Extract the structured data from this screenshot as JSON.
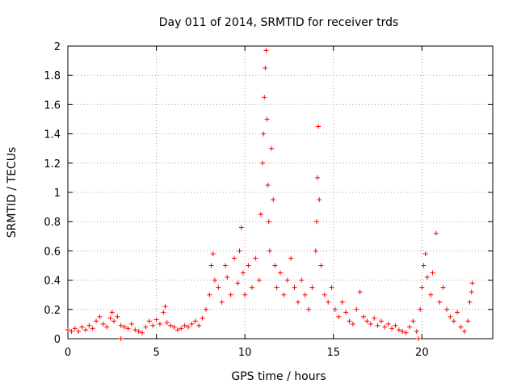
{
  "chart_data": {
    "type": "scatter",
    "title": "Day 011 of 2014, SRMTID for receiver trds",
    "xlabel": "GPS time / hours",
    "ylabel": "SRMTID / TECUs",
    "xlim": [
      0,
      24
    ],
    "ylim": [
      0,
      2
    ],
    "xticks": [
      0,
      5,
      10,
      15,
      20
    ],
    "xtick_labels": [
      "0",
      "5",
      "10",
      "15",
      "20"
    ],
    "yticks": [
      0,
      0.2,
      0.4,
      0.6,
      0.8,
      1,
      1.2,
      1.4,
      1.6,
      1.8,
      2
    ],
    "ytick_labels": [
      "0",
      "0.2",
      "0.4",
      "0.6",
      "0.8",
      "1",
      "1.2",
      "1.4",
      "1.6",
      "1.8",
      "2"
    ],
    "grid": true,
    "marker": "+",
    "color": "#ff0000",
    "series": [
      {
        "name": "SRMTID",
        "points": [
          [
            0.0,
            0.06
          ],
          [
            0.2,
            0.05
          ],
          [
            0.4,
            0.07
          ],
          [
            0.6,
            0.05
          ],
          [
            0.8,
            0.08
          ],
          [
            1.0,
            0.06
          ],
          [
            1.2,
            0.09
          ],
          [
            1.4,
            0.07
          ],
          [
            1.6,
            0.12
          ],
          [
            1.8,
            0.15
          ],
          [
            2.0,
            0.1
          ],
          [
            2.2,
            0.08
          ],
          [
            2.4,
            0.14
          ],
          [
            2.5,
            0.18
          ],
          [
            2.6,
            0.12
          ],
          [
            2.8,
            0.15
          ],
          [
            3.0,
            0.0
          ],
          [
            3.0,
            0.09
          ],
          [
            3.2,
            0.08
          ],
          [
            3.4,
            0.07
          ],
          [
            3.6,
            0.1
          ],
          [
            3.8,
            0.06
          ],
          [
            4.0,
            0.05
          ],
          [
            4.2,
            0.04
          ],
          [
            4.4,
            0.08
          ],
          [
            4.6,
            0.12
          ],
          [
            4.8,
            0.09
          ],
          [
            5.0,
            0.13
          ],
          [
            5.2,
            0.1
          ],
          [
            5.4,
            0.18
          ],
          [
            5.5,
            0.22
          ],
          [
            5.6,
            0.11
          ],
          [
            5.8,
            0.09
          ],
          [
            6.0,
            0.08
          ],
          [
            6.2,
            0.06
          ],
          [
            6.4,
            0.07
          ],
          [
            6.6,
            0.09
          ],
          [
            6.8,
            0.08
          ],
          [
            7.0,
            0.1
          ],
          [
            7.2,
            0.12
          ],
          [
            7.4,
            0.09
          ],
          [
            7.6,
            0.14
          ],
          [
            7.8,
            0.2
          ],
          [
            8.0,
            0.3
          ],
          [
            8.1,
            0.5
          ],
          [
            8.2,
            0.58
          ],
          [
            8.3,
            0.4
          ],
          [
            8.5,
            0.35
          ],
          [
            8.7,
            0.25
          ],
          [
            8.9,
            0.5
          ],
          [
            9.0,
            0.42
          ],
          [
            9.2,
            0.3
          ],
          [
            9.4,
            0.55
          ],
          [
            9.6,
            0.38
          ],
          [
            9.7,
            0.6
          ],
          [
            9.8,
            0.76
          ],
          [
            9.9,
            0.45
          ],
          [
            10.0,
            0.3
          ],
          [
            10.2,
            0.5
          ],
          [
            10.4,
            0.35
          ],
          [
            10.6,
            0.55
          ],
          [
            10.8,
            0.4
          ],
          [
            10.9,
            0.85
          ],
          [
            11.0,
            1.2
          ],
          [
            11.05,
            1.4
          ],
          [
            11.1,
            1.65
          ],
          [
            11.15,
            1.85
          ],
          [
            11.2,
            1.97
          ],
          [
            11.25,
            1.5
          ],
          [
            11.3,
            1.05
          ],
          [
            11.35,
            0.8
          ],
          [
            11.4,
            0.6
          ],
          [
            11.5,
            1.3
          ],
          [
            11.6,
            0.95
          ],
          [
            11.7,
            0.5
          ],
          [
            11.8,
            0.35
          ],
          [
            12.0,
            0.45
          ],
          [
            12.2,
            0.3
          ],
          [
            12.4,
            0.4
          ],
          [
            12.6,
            0.55
          ],
          [
            12.8,
            0.35
          ],
          [
            13.0,
            0.25
          ],
          [
            13.2,
            0.4
          ],
          [
            13.4,
            0.3
          ],
          [
            13.6,
            0.2
          ],
          [
            13.8,
            0.35
          ],
          [
            14.0,
            0.6
          ],
          [
            14.05,
            0.8
          ],
          [
            14.1,
            1.1
          ],
          [
            14.15,
            1.45
          ],
          [
            14.2,
            0.95
          ],
          [
            14.3,
            0.5
          ],
          [
            14.5,
            0.3
          ],
          [
            14.7,
            0.25
          ],
          [
            14.9,
            0.35
          ],
          [
            15.1,
            0.2
          ],
          [
            15.3,
            0.15
          ],
          [
            15.5,
            0.25
          ],
          [
            15.7,
            0.18
          ],
          [
            15.9,
            0.12
          ],
          [
            16.1,
            0.1
          ],
          [
            16.3,
            0.2
          ],
          [
            16.5,
            0.32
          ],
          [
            16.7,
            0.15
          ],
          [
            16.9,
            0.12
          ],
          [
            17.1,
            0.1
          ],
          [
            17.3,
            0.14
          ],
          [
            17.5,
            0.09
          ],
          [
            17.7,
            0.12
          ],
          [
            17.9,
            0.08
          ],
          [
            18.1,
            0.1
          ],
          [
            18.3,
            0.07
          ],
          [
            18.5,
            0.09
          ],
          [
            18.7,
            0.06
          ],
          [
            18.9,
            0.05
          ],
          [
            19.1,
            0.04
          ],
          [
            19.3,
            0.08
          ],
          [
            19.5,
            0.12
          ],
          [
            19.7,
            0.05
          ],
          [
            19.8,
            0.0
          ],
          [
            19.9,
            0.2
          ],
          [
            20.0,
            0.35
          ],
          [
            20.1,
            0.5
          ],
          [
            20.2,
            0.58
          ],
          [
            20.3,
            0.42
          ],
          [
            20.5,
            0.3
          ],
          [
            20.6,
            0.45
          ],
          [
            20.8,
            0.72
          ],
          [
            21.0,
            0.25
          ],
          [
            21.2,
            0.35
          ],
          [
            21.4,
            0.2
          ],
          [
            21.6,
            0.15
          ],
          [
            21.8,
            0.12
          ],
          [
            22.0,
            0.18
          ],
          [
            22.2,
            0.08
          ],
          [
            22.4,
            0.05
          ],
          [
            22.6,
            0.12
          ],
          [
            22.7,
            0.25
          ],
          [
            22.8,
            0.32
          ],
          [
            22.85,
            0.38
          ]
        ]
      }
    ]
  }
}
